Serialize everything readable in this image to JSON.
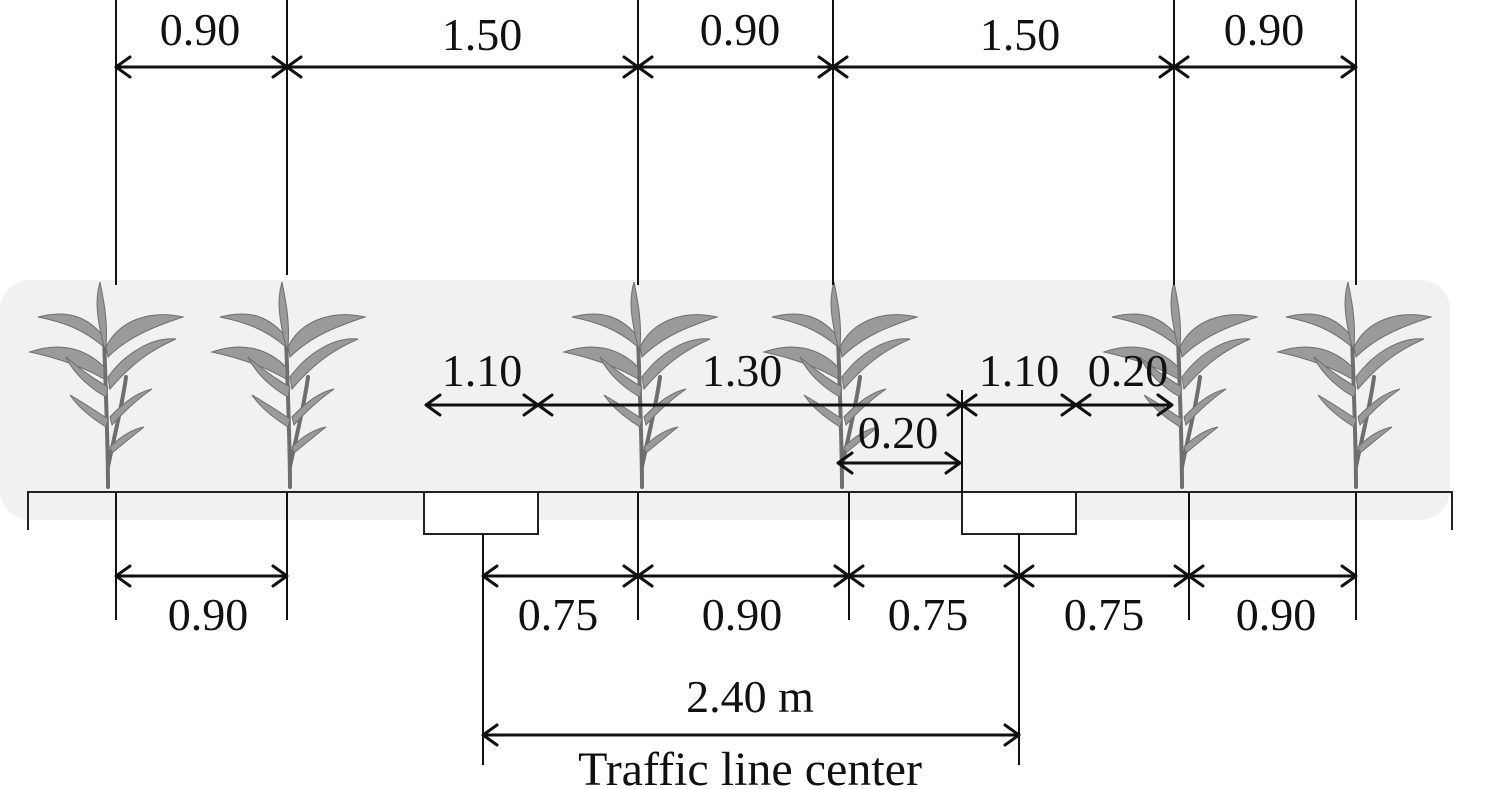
{
  "diagram": {
    "top_row_labels": [
      "0.90",
      "1.50",
      "0.90",
      "1.50",
      "0.90"
    ],
    "wheel_row_labels": [
      "1.10",
      "1.30",
      "0.20",
      "1.10",
      "0.20"
    ],
    "bottom_row_labels": [
      "0.90",
      "0.75",
      "0.90",
      "0.75",
      "0.75",
      "0.90"
    ],
    "track_label": "2.40 m",
    "caption": "Traffic line center",
    "colors": {
      "ink": "#111111",
      "plant": "#9a9a9a",
      "background": "#ffffff"
    },
    "icons": [
      "plant-icon",
      "wheel-track-box"
    ]
  }
}
